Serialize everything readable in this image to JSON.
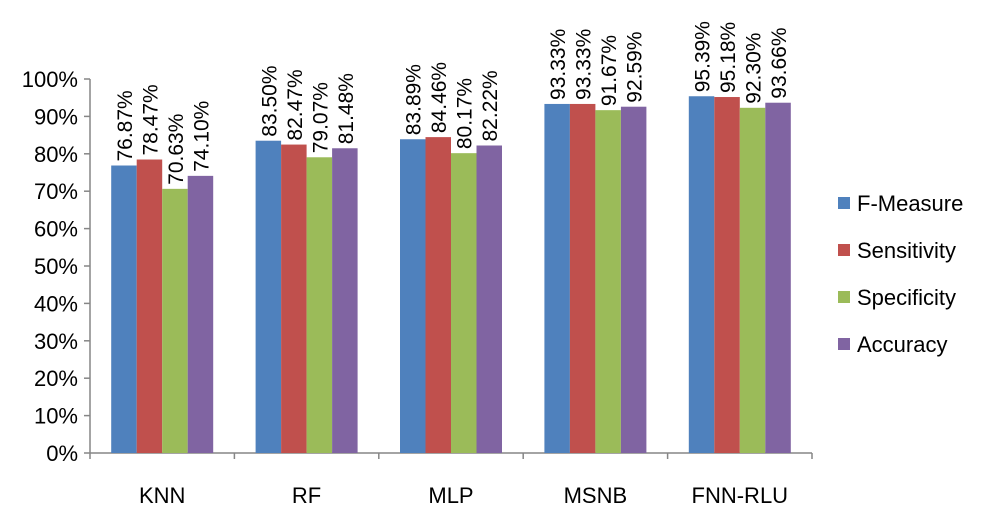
{
  "chart_data": {
    "type": "bar",
    "title": "",
    "xlabel": "",
    "ylabel": "",
    "ylim": [
      0,
      100
    ],
    "y_ticks": [
      "0%",
      "10%",
      "20%",
      "30%",
      "40%",
      "50%",
      "60%",
      "70%",
      "80%",
      "90%",
      "100%"
    ],
    "grid": false,
    "legend_position": "right",
    "categories": [
      "KNN",
      "RF",
      "MLP",
      "MSNB",
      "FNN-RLU"
    ],
    "series": [
      {
        "name": "F-Measure",
        "color": "#4F81BD",
        "values": [
          76.87,
          83.5,
          83.89,
          93.33,
          95.39
        ],
        "labels": [
          "76.87%",
          "83.50%",
          "83.89%",
          "93.33%",
          "95.39%"
        ]
      },
      {
        "name": "Sensitivity",
        "color": "#C0504D",
        "values": [
          78.47,
          82.47,
          84.46,
          93.33,
          95.18
        ],
        "labels": [
          "78.47%",
          "82.47%",
          "84.46%",
          "93.33%",
          "95.18%"
        ]
      },
      {
        "name": "Specificity",
        "color": "#9BBB59",
        "values": [
          70.63,
          79.07,
          80.17,
          91.67,
          92.3
        ],
        "labels": [
          "70.63%",
          "79.07%",
          "80.17%",
          "91.67%",
          "92.30%"
        ]
      },
      {
        "name": "Accuracy",
        "color": "#8064A2",
        "values": [
          74.1,
          81.48,
          82.22,
          92.59,
          93.66
        ],
        "labels": [
          "74.10%",
          "81.48%",
          "82.22%",
          "92.59%",
          "93.66%"
        ]
      }
    ]
  }
}
